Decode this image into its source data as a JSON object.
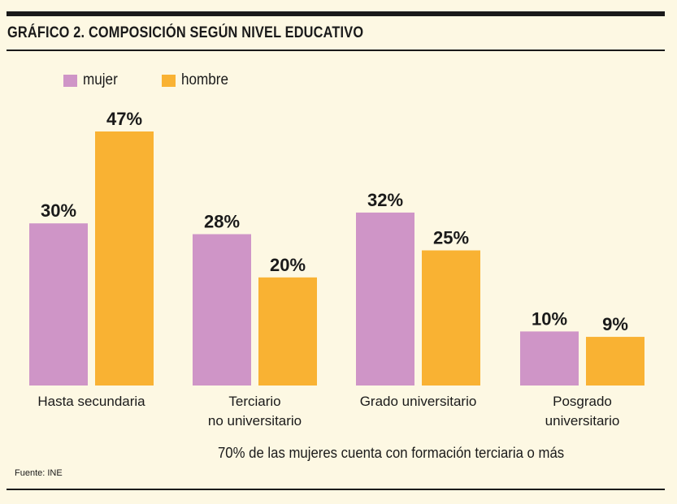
{
  "title": "GRÁFICO 2. COMPOSICIÓN SEGÚN NIVEL EDUCATIVO",
  "colors": {
    "mujer": "#cf95c7",
    "hombre": "#f9b233",
    "background": "#fdf8e3",
    "text": "#1a1a1a"
  },
  "chart_data": {
    "type": "bar",
    "categories": [
      [
        "Hasta secundaria"
      ],
      [
        "Terciario",
        "no universitario"
      ],
      [
        "Grado universitario"
      ],
      [
        "Posgrado",
        "universitario"
      ]
    ],
    "series": [
      {
        "name": "mujer",
        "values": [
          30,
          28,
          32,
          10
        ],
        "labels": [
          "30%",
          "28%",
          "32%",
          "10%"
        ]
      },
      {
        "name": "hombre",
        "values": [
          47,
          20,
          25,
          9
        ],
        "labels": [
          "47%",
          "20%",
          "25%",
          "9%"
        ]
      }
    ],
    "unit": "%",
    "ylim": [
      0,
      47
    ],
    "grid": false,
    "legend": "top-left"
  },
  "annotation": "70% de las mujeres cuenta con formación terciaria o más",
  "source": "Fuente: INE"
}
